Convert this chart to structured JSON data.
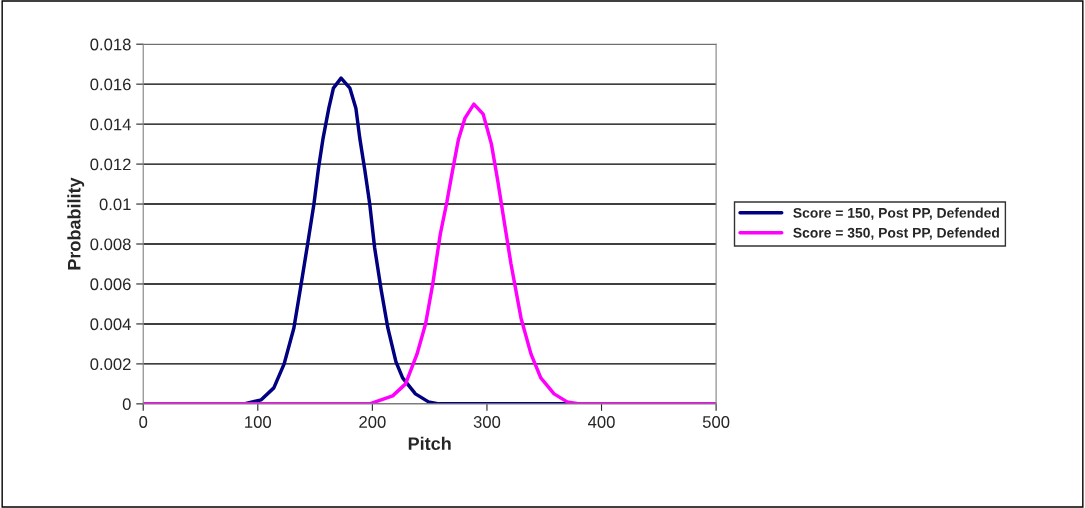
{
  "chart_data": {
    "type": "line",
    "xlabel": "Pitch",
    "ylabel": "Probability",
    "xlim": [
      0,
      500
    ],
    "xticks": [
      0,
      100,
      200,
      300,
      400,
      500
    ],
    "ylim": [
      0,
      0.018
    ],
    "yticks": [
      0,
      0.002,
      0.004,
      0.006,
      0.008,
      0.01,
      0.012,
      0.014,
      0.016,
      0.018
    ],
    "grid": "y",
    "legend": "right",
    "marker": "none",
    "line_style": "solid",
    "series": [
      {
        "name": "Score = 150, Post PP, Defended",
        "color": "#000080",
        "x": [
          0,
          88,
          103,
          114,
          123,
          131.5,
          137,
          143.5,
          149,
          153,
          157,
          162,
          166,
          172.7,
          180.4,
          185.6,
          189,
          193.4,
          197.7,
          202,
          207.7,
          213.5,
          220.6,
          226.4,
          237.6,
          249,
          258,
          500
        ],
        "values": [
          0,
          0,
          0.0002,
          0.0008,
          0.002,
          0.0038,
          0.0057,
          0.008,
          0.01,
          0.0118,
          0.0133,
          0.0148,
          0.0158,
          0.0163,
          0.0158,
          0.0148,
          0.0133,
          0.0117,
          0.01,
          0.0078,
          0.0057,
          0.0038,
          0.0021,
          0.0013,
          0.0005,
          0.0001,
          0,
          0
        ]
      },
      {
        "name": "Score = 350, Post PP, Defended",
        "color": "#ff00ff",
        "x": [
          0,
          197.6,
          217.7,
          229,
          239,
          246.4,
          252.7,
          259.3,
          265,
          269.4,
          275,
          280.8,
          288.6,
          296.7,
          303.9,
          309.6,
          315.4,
          321,
          329.7,
          338.4,
          347,
          358.6,
          370,
          381,
          500
        ],
        "values": [
          0,
          0,
          0.0004,
          0.001,
          0.0025,
          0.004,
          0.006,
          0.0085,
          0.0101,
          0.0115,
          0.0132,
          0.0143,
          0.015,
          0.0145,
          0.013,
          0.0111,
          0.009,
          0.007,
          0.0043,
          0.0025,
          0.0013,
          0.0005,
          0.0001,
          0,
          0
        ]
      }
    ]
  }
}
